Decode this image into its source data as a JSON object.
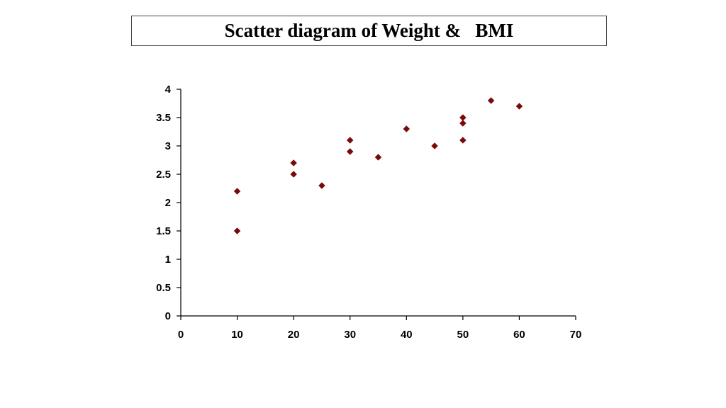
{
  "title": "Scatter diagram of Weight &   BMI",
  "colors": {
    "marker": "#7a0a0a",
    "axis": "#000000"
  },
  "chart_data": {
    "type": "scatter",
    "title": "Scatter diagram of Weight &   BMI",
    "xlabel": "",
    "ylabel": "",
    "xlim": [
      0,
      70
    ],
    "ylim": [
      0,
      4
    ],
    "x_ticks": [
      0,
      10,
      20,
      30,
      40,
      50,
      60,
      70
    ],
    "y_ticks": [
      0,
      0.5,
      1,
      1.5,
      2,
      2.5,
      3,
      3.5,
      4
    ],
    "x_tick_labels": [
      "0",
      "10",
      "20",
      "30",
      "40",
      "50",
      "60",
      "70"
    ],
    "y_tick_labels": [
      "0",
      "0.5",
      "1",
      "1.5",
      "2",
      "2.5",
      "3",
      "3.5",
      "4"
    ],
    "grid": false,
    "marker": "diamond",
    "series": [
      {
        "points": [
          {
            "x": 10,
            "y": 2.2
          },
          {
            "x": 10,
            "y": 1.5
          },
          {
            "x": 20,
            "y": 2.7
          },
          {
            "x": 20,
            "y": 2.5
          },
          {
            "x": 25,
            "y": 2.3
          },
          {
            "x": 30,
            "y": 3.1
          },
          {
            "x": 30,
            "y": 2.9
          },
          {
            "x": 35,
            "y": 2.8
          },
          {
            "x": 40,
            "y": 3.3
          },
          {
            "x": 45,
            "y": 3.0
          },
          {
            "x": 50,
            "y": 3.5
          },
          {
            "x": 50,
            "y": 3.4
          },
          {
            "x": 50,
            "y": 3.1
          },
          {
            "x": 55,
            "y": 3.8
          },
          {
            "x": 60,
            "y": 3.7
          }
        ]
      }
    ]
  }
}
